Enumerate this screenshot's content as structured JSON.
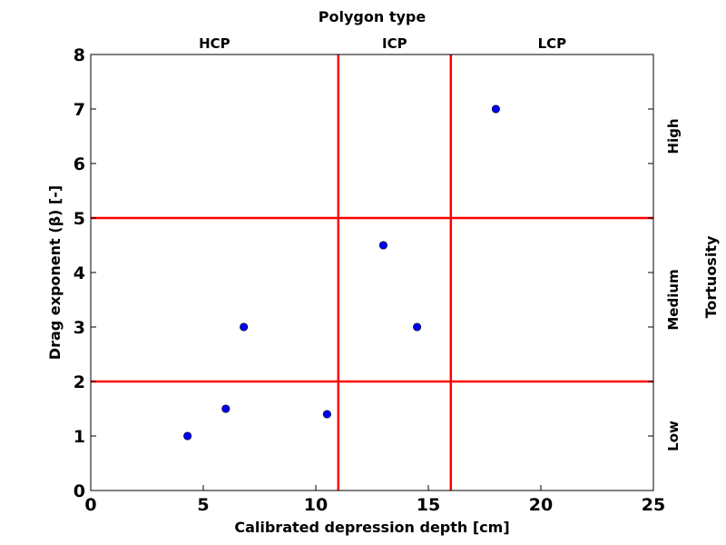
{
  "chart_data": {
    "type": "scatter",
    "title": "",
    "xlabel": "Calibrated depression depth [cm]",
    "ylabel": "Drag exponent (β) [-]",
    "top_axis_title": "Polygon type",
    "right_axis_title": "Tortuosity",
    "xlim": [
      0,
      25
    ],
    "ylim": [
      0,
      8
    ],
    "xticks": [
      0,
      5,
      10,
      15,
      20,
      25
    ],
    "yticks": [
      0,
      1,
      2,
      3,
      4,
      5,
      6,
      7,
      8
    ],
    "grid": false,
    "legend": "none",
    "points": [
      {
        "x": 4.3,
        "y": 1.0
      },
      {
        "x": 6.0,
        "y": 1.5
      },
      {
        "x": 6.8,
        "y": 3.0
      },
      {
        "x": 10.5,
        "y": 1.4
      },
      {
        "x": 13.0,
        "y": 4.5
      },
      {
        "x": 14.5,
        "y": 3.0
      },
      {
        "x": 18.0,
        "y": 7.0
      }
    ],
    "vertical_lines": [
      11,
      16
    ],
    "horizontal_lines": [
      2,
      5
    ],
    "top_regions": [
      {
        "label": "HCP",
        "from": 0,
        "to": 11
      },
      {
        "label": "ICP",
        "from": 11,
        "to": 16
      },
      {
        "label": "LCP",
        "from": 16,
        "to": 25
      }
    ],
    "right_regions": [
      {
        "label": "Low",
        "from": 0,
        "to": 2
      },
      {
        "label": "Medium",
        "from": 2,
        "to": 5
      },
      {
        "label": "High",
        "from": 5,
        "to": 8
      }
    ],
    "colors": {
      "points": "#0000ff",
      "point_edge": "#000000",
      "lines": "#ff0000",
      "axes": "#000000"
    }
  }
}
